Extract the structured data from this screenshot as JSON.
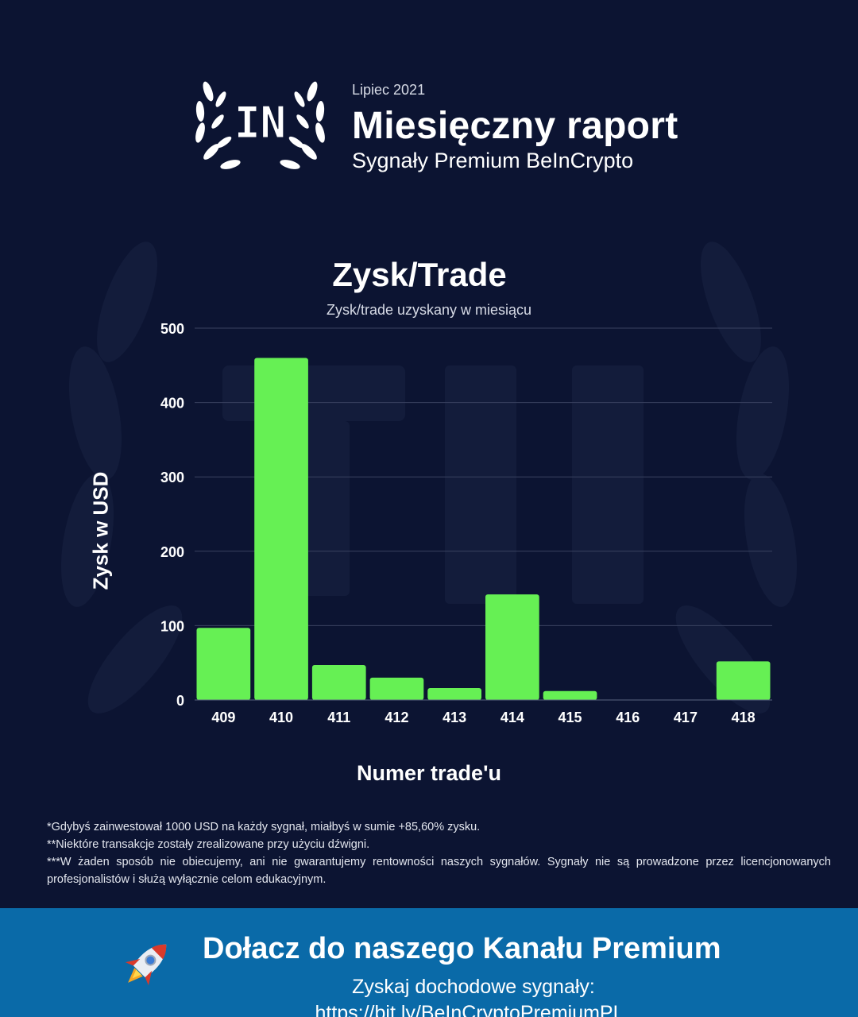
{
  "header": {
    "month": "Lipiec 2021",
    "title": "Miesięczny raport",
    "subtitle": "Sygnały Premium BeInCrypto",
    "logo_text": "IN"
  },
  "colors": {
    "background": "#0c1432",
    "bar": "#66f054",
    "grid": "#3a4260",
    "banner": "#0a6aa8"
  },
  "chart_data": {
    "type": "bar",
    "title": "Zysk/Trade",
    "subtitle": "Zysk/trade uzyskany w miesiącu",
    "xlabel": "Numer trade'u",
    "ylabel": "Zysk w USD",
    "categories": [
      "409",
      "410",
      "411",
      "412",
      "413",
      "414",
      "415",
      "416",
      "417",
      "418"
    ],
    "values": [
      97,
      460,
      47,
      30,
      16,
      142,
      12,
      0,
      0,
      52
    ],
    "ylim": [
      0,
      500
    ],
    "yticks": [
      0,
      100,
      200,
      300,
      400,
      500
    ],
    "grid": true
  },
  "footnotes": [
    "*Gdybyś zainwestował 1000 USD na każdy sygnał, miałbyś w sumie +85,60% zysku.",
    "**Niektóre transakcje zostały zrealizowane przy użyciu dźwigni.",
    "***W żaden sposób nie obiecujemy, ani nie gwarantujemy rentowności naszych sygnałów. Sygnały nie są prowadzone przez licencjonowanych profesjonalistów i służą wyłącznie celom edukacyjnym."
  ],
  "banner": {
    "icon": "rocket-icon",
    "title": "Dołacz do naszego Kanału Premium",
    "subtitle": "Zyskaj dochodowe sygnały:",
    "link": "https://bit.ly/BeInCryptoPremiumPL"
  }
}
